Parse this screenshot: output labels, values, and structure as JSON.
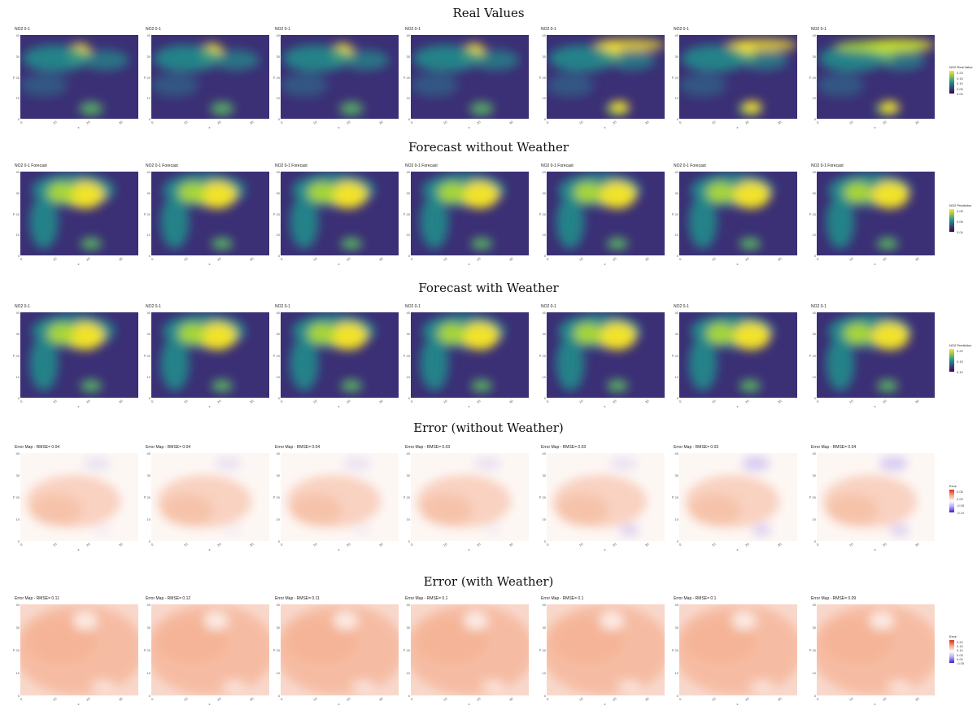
{
  "rows": [
    {
      "title": "Real Values",
      "kind": "real",
      "panel_titles": [
        "NO2 0-1",
        "NO2 0-1",
        "NO2 0-1",
        "NO2 0-1",
        "NO2 0-1",
        "NO2 0-1",
        "NO2 0-1"
      ],
      "legend_title": "NO2 Real Value",
      "legend_labels": [
        "0.20",
        "0.15",
        "0.10",
        "0.05",
        "0.00"
      ],
      "legend_palette": "viridis"
    },
    {
      "title": "Forecast without Weather",
      "kind": "fcast",
      "panel_titles": [
        "NO2 0-1 Forecast",
        "NO2 0-1 Forecast",
        "NO2 0-1 Forecast",
        "NO2 0-1 Forecast",
        "NO2 0-1 Forecast",
        "NO2 0-1 Forecast",
        "NO2 0-1 Forecast"
      ],
      "legend_title": "NO2 Prediction",
      "legend_labels": [
        "0.08",
        "0.06",
        "0.04"
      ],
      "legend_palette": "viridis"
    },
    {
      "title": "Forecast with Weather",
      "kind": "fcast",
      "panel_titles": [
        "NO2 0-1",
        "NO2 0-1",
        "NO2 0-1",
        "NO2 0-1",
        "NO2 0-1",
        "NO2 0-1",
        "NO2 0-1"
      ],
      "legend_title": "NO2 Prediction",
      "legend_labels": [
        "0.20",
        "0.15",
        "0.10"
      ],
      "legend_palette": "viridis"
    },
    {
      "title": "Error (without Weather)",
      "kind": "err1",
      "panel_titles": [
        "Error Map - RMSE= 0.04",
        "Error Map - RMSE= 0.04",
        "Error Map - RMSE= 0.04",
        "Error Map - RMSE= 0.03",
        "Error Map - RMSE= 0.03",
        "Error Map - RMSE= 0.03",
        "Error Map - RMSE= 0.04"
      ],
      "legend_title": "Error",
      "legend_labels": [
        "0.05",
        "0.00",
        "-0.05",
        "-0.10"
      ],
      "legend_palette": "diverging"
    },
    {
      "title": "Error (with Weather)",
      "kind": "err2",
      "panel_titles": [
        "Error Map - RMSE= 0.11",
        "Error Map - RMSE= 0.12",
        "Error Map - RMSE= 0.11",
        "Error Map - RMSE= 0.1",
        "Error Map - RMSE= 0.1",
        "Error Map - RMSE= 0.1",
        "Error Map - RMSE= 0.09"
      ],
      "legend_title": "Error",
      "legend_labels": [
        "0.20",
        "0.15",
        "0.10",
        "0.05",
        "0.00",
        "-0.05"
      ],
      "legend_palette": "diverging"
    }
  ],
  "axis": {
    "y_label": "y",
    "x_label": "x",
    "y_ticks": [
      "40",
      "30",
      "20",
      "10",
      "0"
    ],
    "x_ticks": [
      "0",
      "10",
      "20",
      "30"
    ]
  },
  "colors": {
    "viridis_low": "#440154",
    "viridis_mid": "#21908C",
    "viridis_high": "#FDE725",
    "error_pos": "#F4A582",
    "error_neg": "#B2A6F0"
  },
  "chart_data": {
    "type": "heatmap",
    "layout": "5 rows x 7 panels",
    "row_titles": [
      "Real Values",
      "Forecast without Weather",
      "Forecast with Weather",
      "Error (without Weather)",
      "Error (with Weather)"
    ],
    "rmse_without_weather": [
      0.04,
      0.04,
      0.04,
      0.03,
      0.03,
      0.03,
      0.04
    ],
    "rmse_with_weather": [
      0.11,
      0.12,
      0.11,
      0.1,
      0.1,
      0.1,
      0.09
    ],
    "y_range": [
      0,
      40
    ],
    "x_range": [
      0,
      35
    ]
  }
}
